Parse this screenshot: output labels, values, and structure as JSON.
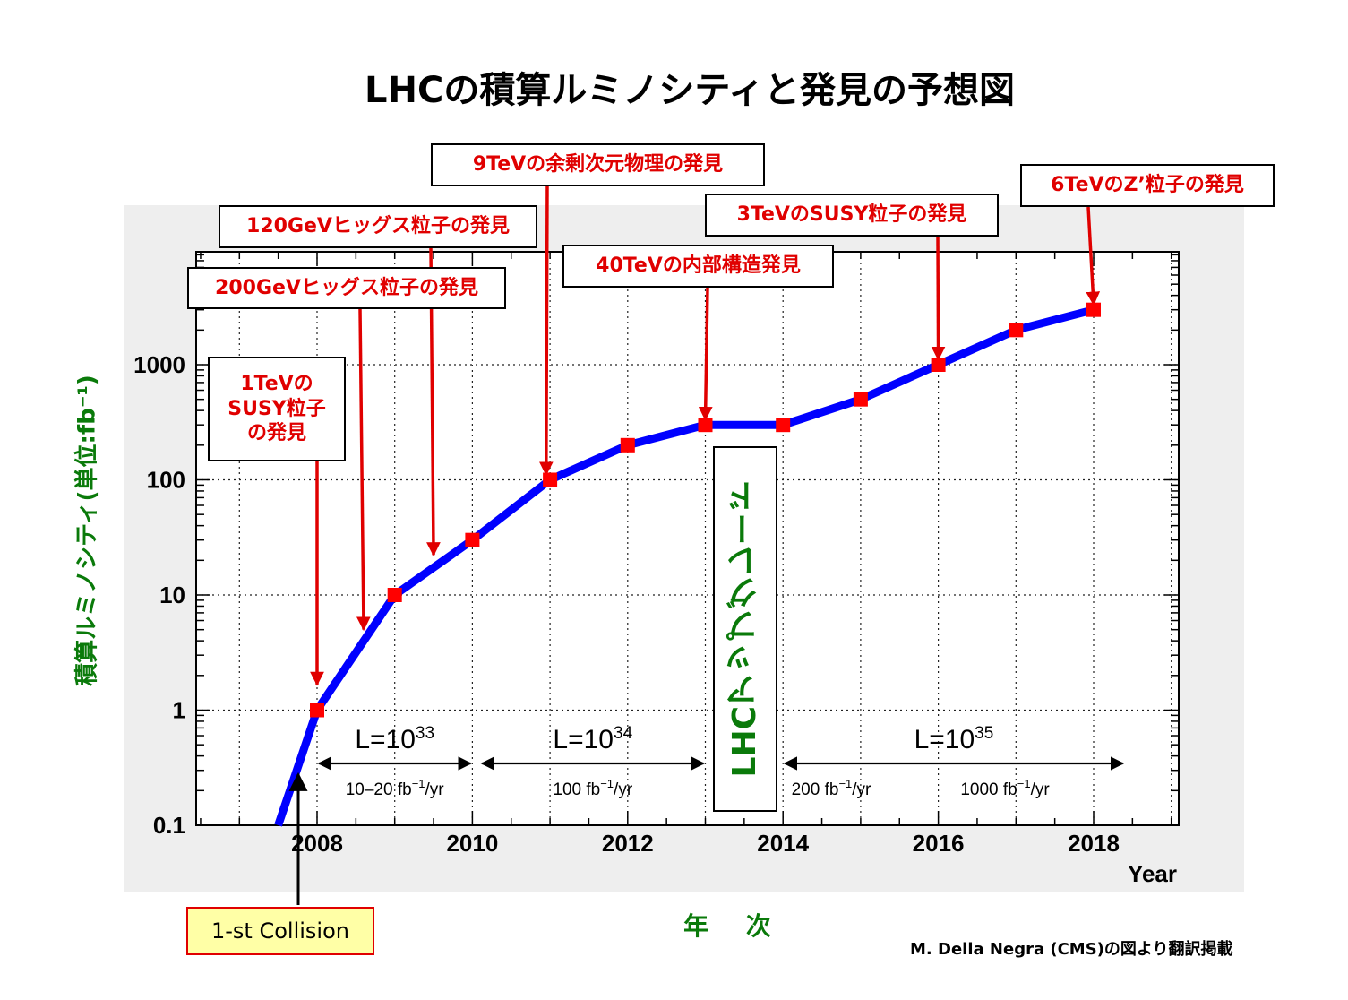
{
  "title": "LHCの積算ルミノシティと発見の予想図",
  "chart_data": {
    "type": "line",
    "ylabel": "積算ルミノシティ(単位:fb⁻¹)",
    "x_axis_name": "Year",
    "x_axis_title_jp": "年 次",
    "y_scale": "log",
    "xlim": [
      2006.5,
      2019.1
    ],
    "ylim": [
      0.1,
      10000
    ],
    "x_ticks": [
      2008,
      2010,
      2012,
      2014,
      2016,
      2018
    ],
    "y_ticks": [
      {
        "value": 0.1,
        "label": "0.1"
      },
      {
        "value": 1,
        "label": "1"
      },
      {
        "value": 10,
        "label": "10"
      },
      {
        "value": 100,
        "label": "100"
      },
      {
        "value": 1000,
        "label": "1000"
      }
    ],
    "grid": true,
    "line_color": "#0000ff",
    "marker_color": "#ff0000",
    "curve": [
      {
        "x": 2007.5,
        "y": 0.1
      },
      {
        "x": 2008,
        "y": 1
      },
      {
        "x": 2009,
        "y": 10
      },
      {
        "x": 2010,
        "y": 30
      },
      {
        "x": 2011,
        "y": 100
      },
      {
        "x": 2012,
        "y": 200
      },
      {
        "x": 2013,
        "y": 300
      },
      {
        "x": 2014,
        "y": 300
      },
      {
        "x": 2015,
        "y": 500
      },
      {
        "x": 2016,
        "y": 1000
      },
      {
        "x": 2017,
        "y": 2000
      },
      {
        "x": 2018,
        "y": 3000
      }
    ],
    "markers": [
      {
        "x": 2008,
        "y": 1
      },
      {
        "x": 2009,
        "y": 10
      },
      {
        "x": 2010,
        "y": 30
      },
      {
        "x": 2011,
        "y": 100
      },
      {
        "x": 2012,
        "y": 200
      },
      {
        "x": 2013,
        "y": 300
      },
      {
        "x": 2014,
        "y": 300
      },
      {
        "x": 2015,
        "y": 500
      },
      {
        "x": 2016,
        "y": 1000
      },
      {
        "x": 2017,
        "y": 2000
      },
      {
        "x": 2018,
        "y": 3000
      }
    ],
    "periods": [
      {
        "label_base": "L=10",
        "label_exp": "33",
        "rate_value": "10–20 fb",
        "rate_unit": "/yr",
        "x_start": 2008,
        "x_end": 2010
      },
      {
        "label_base": "L=10",
        "label_exp": "34",
        "rate_value": "100 fb",
        "rate_unit": "/yr",
        "x_start": 2010.1,
        "x_end": 2013
      },
      {
        "label_base": "L=10",
        "label_exp": "35",
        "rate_value": "200 fb",
        "rate_unit": "/yr",
        "rate2_value": "1000 fb",
        "rate2_unit": "/yr",
        "x_start": 2014,
        "x_end": 2018.4
      }
    ],
    "annotations": [
      {
        "text": "1TeVの\nSUSY粒子\nの発見",
        "target": {
          "x": 2008,
          "y": 1.5
        }
      },
      {
        "text": "200GeVヒッグス粒子の発見",
        "target": {
          "x": 2008.6,
          "y": 4.5
        }
      },
      {
        "text": "120GeVヒッグス粒子の発見",
        "target": {
          "x": 2009.5,
          "y": 20
        }
      },
      {
        "text": "9TeVの余剰次元物理の発見",
        "target": {
          "x": 2010.95,
          "y": 100
        }
      },
      {
        "text": "40TeVの内部構造発見",
        "target": {
          "x": 2013,
          "y": 300
        }
      },
      {
        "text": "3TeVのSUSY粒子の発見",
        "target": {
          "x": 2016,
          "y": 1000
        }
      },
      {
        "text": "6TeVのZ’粒子の発見",
        "target": {
          "x": 2018,
          "y": 3000
        }
      }
    ],
    "upgrade_label": "LHCアップグレード"
  },
  "first_collision": "1-st Collision",
  "credit": "M. Della Negra (CMS)の図より翻訳掲載",
  "colors": {
    "annotation_text": "#e00000",
    "arrow": "#e00000",
    "axis_title": "#0a7a0a",
    "plot_frame_bg": "#eeeeee",
    "plot_area_bg": "#ffffff"
  }
}
